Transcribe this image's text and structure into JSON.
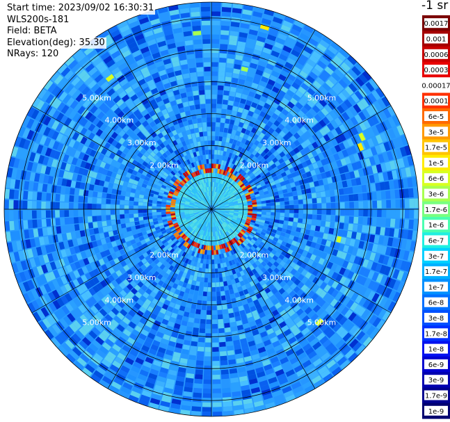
{
  "info": {
    "start_time": "Start time: 2023/09/02 16:30:31",
    "instrument": "WLS200s-181",
    "field": "Field: BETA",
    "elevation": "Elevation(deg): 35.30",
    "nrays": "NRays: 120"
  },
  "chart_data": {
    "type": "heatmap",
    "subtype": "polar PPI scan",
    "field": "BETA",
    "elevation_deg": 35.3,
    "n_rays": 120,
    "range_rings_km": [
      1,
      2,
      3,
      4,
      5,
      6
    ],
    "range_ring_labels": [
      "2.00km",
      "3.00km",
      "4.00km",
      "5.00km"
    ],
    "features": [
      {
        "description": "aerosol ring",
        "range_km": 1.2,
        "level_index": 16
      },
      {
        "description": "outer cloud arcs",
        "range_km": 4.6,
        "level_index": 8
      }
    ],
    "colorbar": {
      "unit_label": "-1 sr",
      "labels": [
        "0.0017",
        "0.001",
        "0.0006",
        "0.0003",
        "0.00017",
        "0.0001",
        "6e-5",
        "3e-5",
        "1.7e-5",
        "1e-5",
        "6e-6",
        "3e-6",
        "1.7e-6",
        "1e-6",
        "6e-7",
        "3e-7",
        "1.7e-7",
        "1e-7",
        "6e-8",
        "3e-8",
        "1.7e-8",
        "1e-8",
        "6e-9",
        "3e-9",
        "1.7e-9",
        "1e-9"
      ],
      "colors": [
        "#7a0000",
        "#a50000",
        "#c80000",
        "#e80000",
        "#ffffff",
        "#ff3000",
        "#ff6a00",
        "#ff9a00",
        "#ffc400",
        "#ffec00",
        "#d8ff20",
        "#a8ff50",
        "#78ff80",
        "#4affb0",
        "#20f0e0",
        "#00d0ff",
        "#00b0ff",
        "#0090ff",
        "#0070ff",
        "#0050ff",
        "#0030ff",
        "#0010f0",
        "#0000d0",
        "#0000b0",
        "#000090",
        "#000070"
      ]
    }
  }
}
